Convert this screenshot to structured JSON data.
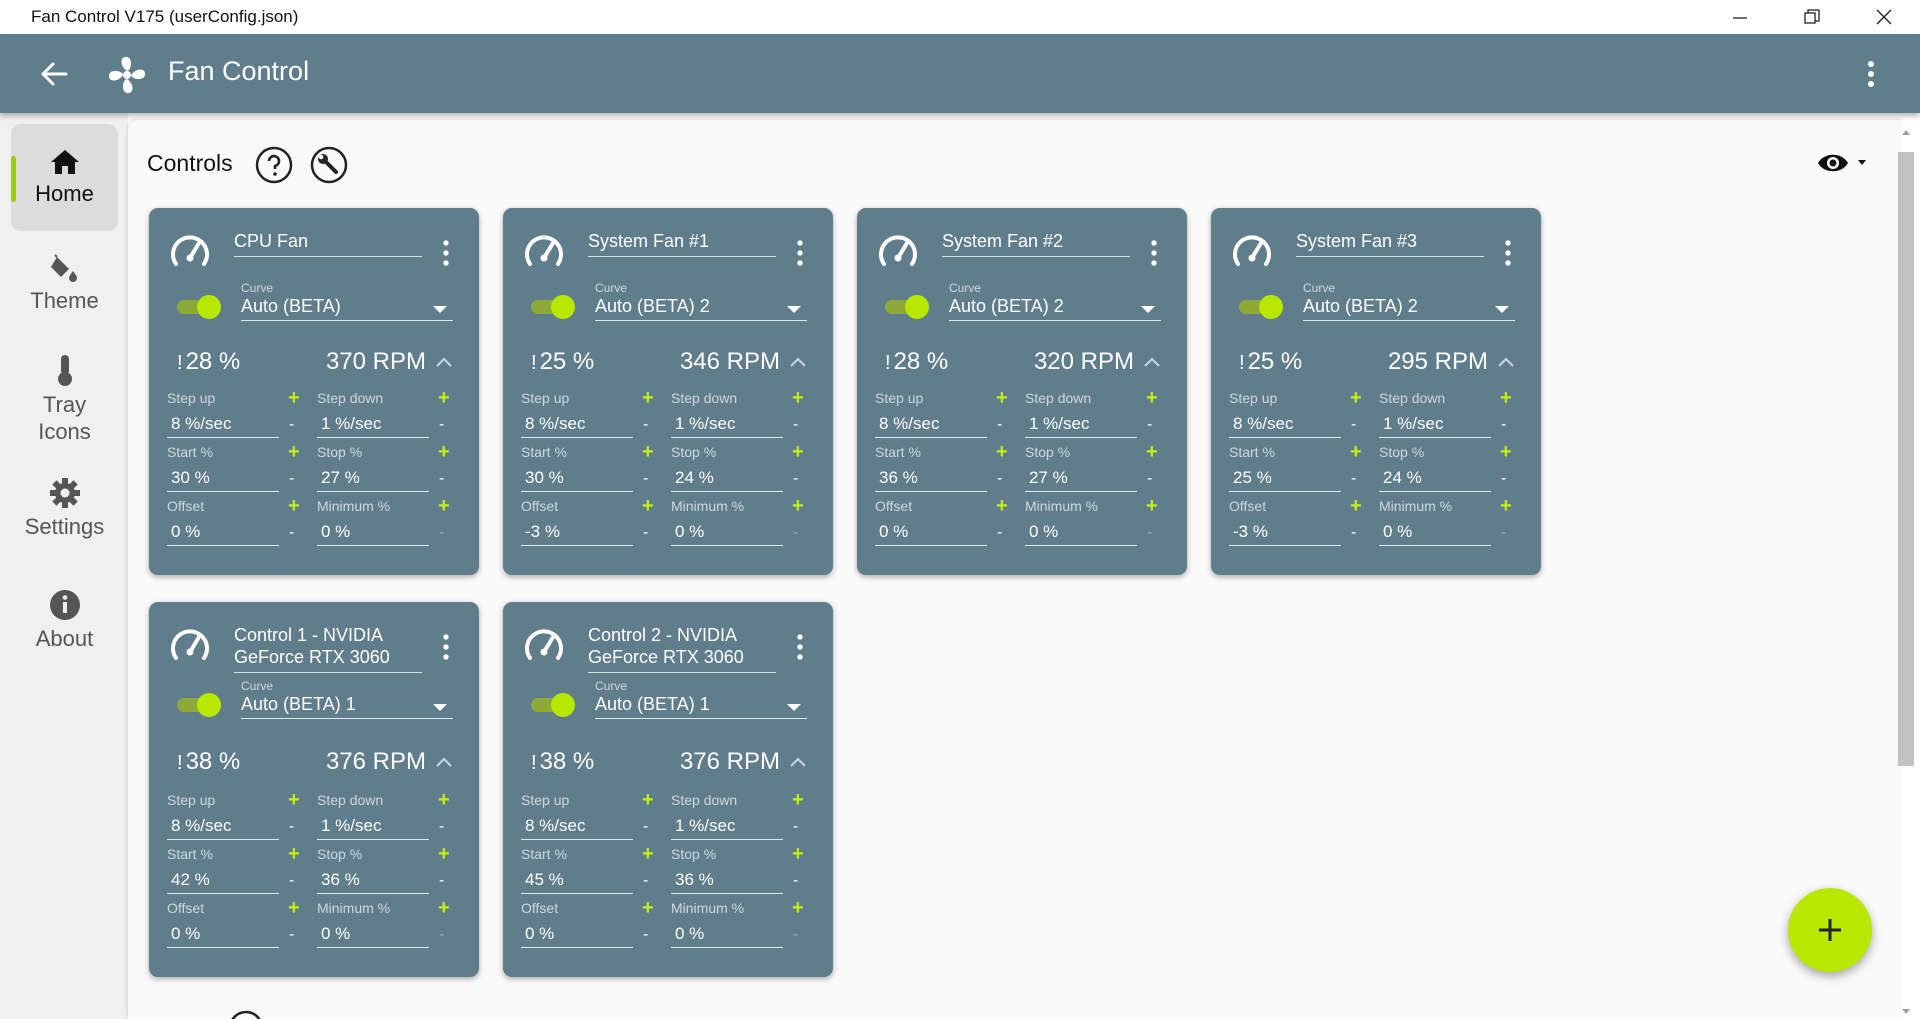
{
  "window": {
    "title": "Fan Control V175 (userConfig.json)"
  },
  "appbar": {
    "title": "Fan Control"
  },
  "sidebar": {
    "items": [
      {
        "label": "Home",
        "icon": "home-icon"
      },
      {
        "label": "Theme",
        "icon": "paint-bucket-icon"
      },
      {
        "label": "Tray Icons",
        "icon": "thermometer-icon"
      },
      {
        "label": "Settings",
        "icon": "gear-icon"
      },
      {
        "label": "About",
        "icon": "info-icon"
      }
    ]
  },
  "controls": {
    "title": "Controls",
    "cards": [
      {
        "name": "CPU Fan",
        "curve_label": "Curve",
        "curve": "Auto (BETA)",
        "percent": "28 %",
        "rpm": "370 RPM",
        "step_up_label": "Step up",
        "step_up": "8 %/sec",
        "step_down_label": "Step down",
        "step_down": "1 %/sec",
        "start_label": "Start %",
        "start": "30 %",
        "stop_label": "Stop %",
        "stop": "27 %",
        "offset_label": "Offset",
        "offset": "0 %",
        "minimum_label": "Minimum %",
        "minimum": "0 %"
      },
      {
        "name": "System Fan #1",
        "curve_label": "Curve",
        "curve": "Auto (BETA) 2",
        "percent": "25 %",
        "rpm": "346 RPM",
        "step_up_label": "Step up",
        "step_up": "8 %/sec",
        "step_down_label": "Step down",
        "step_down": "1 %/sec",
        "start_label": "Start %",
        "start": "30 %",
        "stop_label": "Stop %",
        "stop": "24 %",
        "offset_label": "Offset",
        "offset": "-3 %",
        "minimum_label": "Minimum %",
        "minimum": "0 %"
      },
      {
        "name": "System Fan #2",
        "curve_label": "Curve",
        "curve": "Auto (BETA) 2",
        "percent": "28 %",
        "rpm": "320 RPM",
        "step_up_label": "Step up",
        "step_up": "8 %/sec",
        "step_down_label": "Step down",
        "step_down": "1 %/sec",
        "start_label": "Start %",
        "start": "36 %",
        "stop_label": "Stop %",
        "stop": "27 %",
        "offset_label": "Offset",
        "offset": "0 %",
        "minimum_label": "Minimum %",
        "minimum": "0 %"
      },
      {
        "name": "System Fan #3",
        "curve_label": "Curve",
        "curve": "Auto (BETA) 2",
        "percent": "25 %",
        "rpm": "295 RPM",
        "step_up_label": "Step up",
        "step_up": "8 %/sec",
        "step_down_label": "Step down",
        "step_down": "1 %/sec",
        "start_label": "Start %",
        "start": "25 %",
        "stop_label": "Stop %",
        "stop": "24 %",
        "offset_label": "Offset",
        "offset": "-3 %",
        "minimum_label": "Minimum %",
        "minimum": "0 %"
      },
      {
        "name_line1": "Control 1 - NVIDIA",
        "name_line2": "GeForce RTX 3060",
        "curve_label": "Curve",
        "curve": "Auto (BETA) 1",
        "percent": "38 %",
        "rpm": "376 RPM",
        "step_up_label": "Step up",
        "step_up": "8 %/sec",
        "step_down_label": "Step down",
        "step_down": "1 %/sec",
        "start_label": "Start %",
        "start": "42 %",
        "stop_label": "Stop %",
        "stop": "36 %",
        "offset_label": "Offset",
        "offset": "0 %",
        "minimum_label": "Minimum %",
        "minimum": "0 %"
      },
      {
        "name_line1": "Control 2 - NVIDIA",
        "name_line2": "GeForce RTX 3060",
        "curve_label": "Curve",
        "curve": "Auto (BETA) 1",
        "percent": "38 %",
        "rpm": "376 RPM",
        "step_up_label": "Step up",
        "step_up": "8 %/sec",
        "step_down_label": "Step down",
        "step_down": "1 %/sec",
        "start_label": "Start %",
        "start": "45 %",
        "stop_label": "Stop %",
        "stop": "36 %",
        "offset_label": "Offset",
        "offset": "0 %",
        "minimum_label": "Minimum %",
        "minimum": "0 %"
      }
    ]
  },
  "colors": {
    "appbar": "#607D8B",
    "card": "#607D8B",
    "accent": "#B9E800",
    "plus": "#C6EF10"
  }
}
